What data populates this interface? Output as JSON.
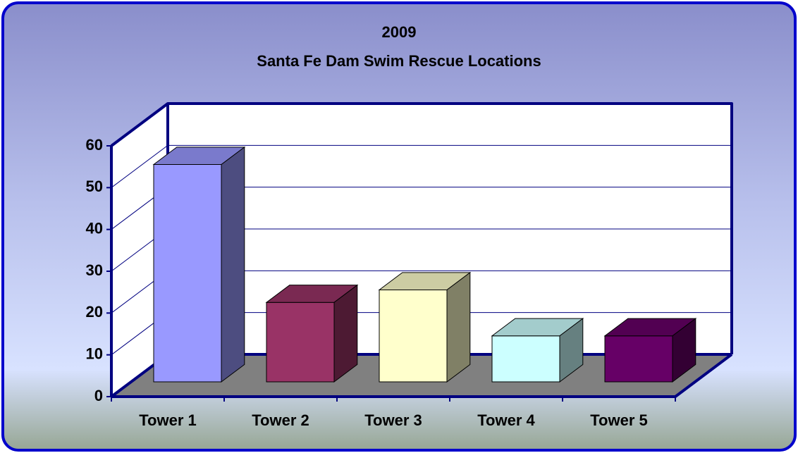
{
  "chart_data": {
    "type": "bar3d",
    "title": "2009",
    "subtitle": "Santa Fe Dam Swim Rescue Locations",
    "categories": [
      "Tower 1",
      "Tower 2",
      "Tower 3",
      "Tower 4",
      "Tower 5"
    ],
    "values": [
      52,
      19,
      22,
      11,
      11
    ],
    "colors": [
      "#9999ff",
      "#993366",
      "#ffffcc",
      "#ccffff",
      "#660066"
    ],
    "ylim": [
      0,
      60
    ],
    "yticks": [
      0,
      10,
      20,
      30,
      40,
      50,
      60
    ],
    "grid": true
  }
}
